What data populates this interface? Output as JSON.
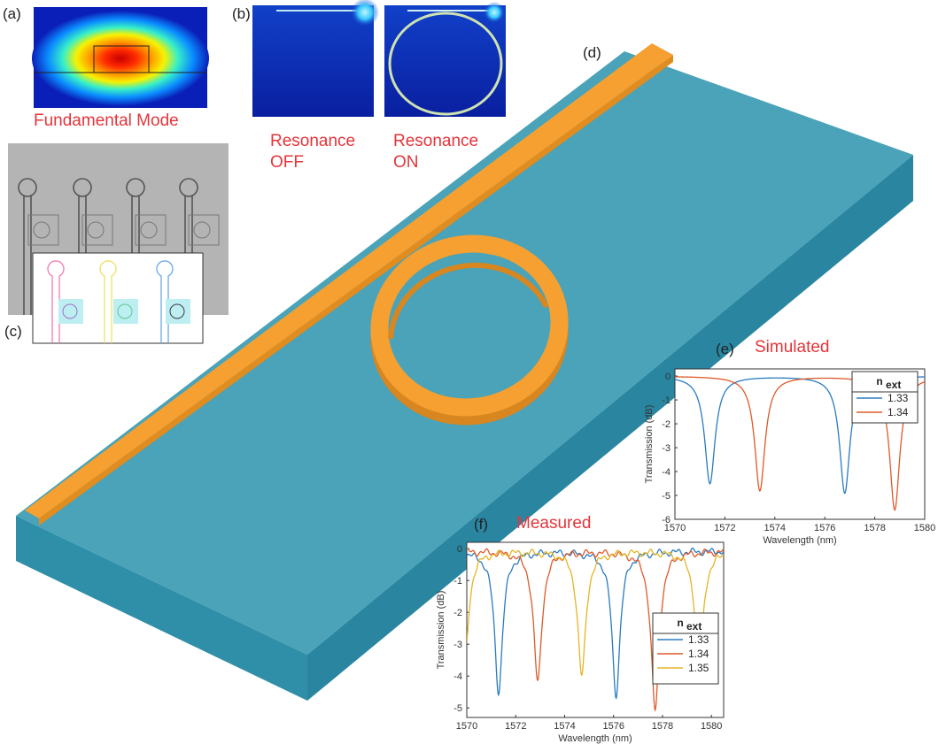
{
  "panels": {
    "a": {
      "letter": "(a)",
      "caption": "Fundamental Mode"
    },
    "b": {
      "letter": "(b)",
      "off_caption": "Resonance\nOFF",
      "on_caption": "Resonance\nON"
    },
    "c": {
      "letter": "(c)"
    },
    "d": {
      "letter": "(d)"
    },
    "e": {
      "letter": "(e)",
      "caption": "Simulated"
    },
    "f": {
      "letter": "(f)",
      "caption": "Measured"
    }
  },
  "colors": {
    "substrate_top": "#4aa3b8",
    "substrate_side": "#2f8ea8",
    "waveguide": "#f5a031",
    "label_red": "#e5343a",
    "series_1_33": "#2a7bbf",
    "series_1_34": "#de5a2a",
    "series_1_35": "#e5b425"
  },
  "chart_data": [
    {
      "id": "e",
      "type": "line",
      "title": "Simulated",
      "xlabel": "Wavelength (nm)",
      "ylabel": "Transmission (dB)",
      "xlim": [
        1570,
        1580
      ],
      "ylim": [
        -6,
        0.3
      ],
      "xticks": [
        1570,
        1572,
        1574,
        1576,
        1578,
        1580
      ],
      "yticks": [
        0,
        -1,
        -2,
        -3,
        -4,
        -5,
        -6
      ],
      "legend_title": "n",
      "legend_title_sub": "ext",
      "legend_position": "top-right",
      "series": [
        {
          "name": "1.33",
          "dips": [
            {
              "x": 1571.4,
              "depth": -4.5,
              "width": 0.25
            },
            {
              "x": 1576.8,
              "depth": -4.9,
              "width": 0.25
            }
          ]
        },
        {
          "name": "1.34",
          "dips": [
            {
              "x": 1573.4,
              "depth": -4.8,
              "width": 0.25
            },
            {
              "x": 1578.8,
              "depth": -5.6,
              "width": 0.25
            }
          ]
        }
      ]
    },
    {
      "id": "f",
      "type": "line",
      "title": "Measured",
      "xlabel": "Wavelength (nm)",
      "ylabel": "Transmission (dB)",
      "xlim": [
        1570,
        1580.5
      ],
      "ylim": [
        -5.3,
        0.2
      ],
      "xticks": [
        1570,
        1572,
        1574,
        1576,
        1578,
        1580
      ],
      "yticks": [
        0,
        -1,
        -2,
        -3,
        -4,
        -5
      ],
      "legend_title": "n",
      "legend_title_sub": "ext",
      "legend_position": "bottom-right",
      "series": [
        {
          "name": "1.33",
          "dips": [
            {
              "x": 1571.3,
              "depth": -4.4,
              "width": 0.2
            },
            {
              "x": 1576.1,
              "depth": -4.5,
              "width": 0.2
            }
          ]
        },
        {
          "name": "1.34",
          "dips": [
            {
              "x": 1572.9,
              "depth": -4.1,
              "width": 0.2
            },
            {
              "x": 1577.7,
              "depth": -5.0,
              "width": 0.2
            }
          ]
        },
        {
          "name": "1.35",
          "dips": [
            {
              "x": 1569.9,
              "depth": -3.7,
              "width": 0.2
            },
            {
              "x": 1574.7,
              "depth": -3.9,
              "width": 0.2
            },
            {
              "x": 1579.5,
              "depth": -3.6,
              "width": 0.2
            }
          ]
        }
      ]
    }
  ]
}
